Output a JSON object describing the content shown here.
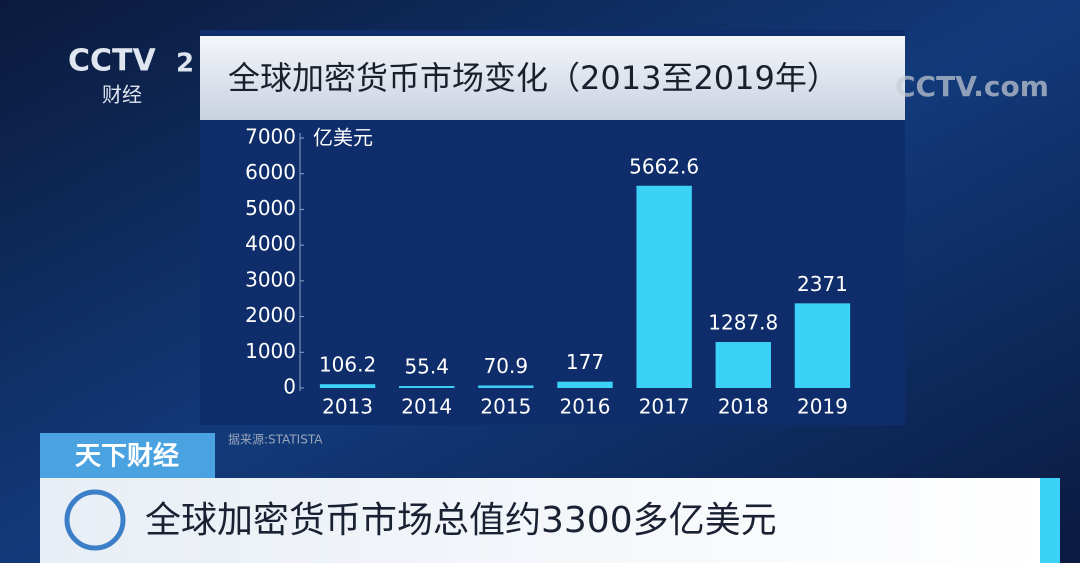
{
  "chart_data": {
    "type": "bar",
    "title": "全球加密货币市场变化（2013至2019年）",
    "y_label": "亿美元",
    "categories": [
      "2013",
      "2014",
      "2015",
      "2016",
      "2017",
      "2018",
      "2019"
    ],
    "values": [
      106.2,
      55.4,
      70.9,
      177,
      5662.6,
      1287.8,
      2371
    ],
    "color": "#3cd2f7",
    "ylim": [
      0,
      7000
    ],
    "yticks": [
      0,
      1000,
      2000,
      3000,
      4000,
      5000,
      6000,
      7000
    ],
    "source": "据来源:STATISTA"
  },
  "overlay": {
    "channel_logo": "CCTV",
    "channel_number": "2",
    "channel_name": "财经",
    "site_logo": "CCTV.com",
    "program": "天下财经",
    "caption": "全球加密货币市场总值约3300多亿美元"
  }
}
